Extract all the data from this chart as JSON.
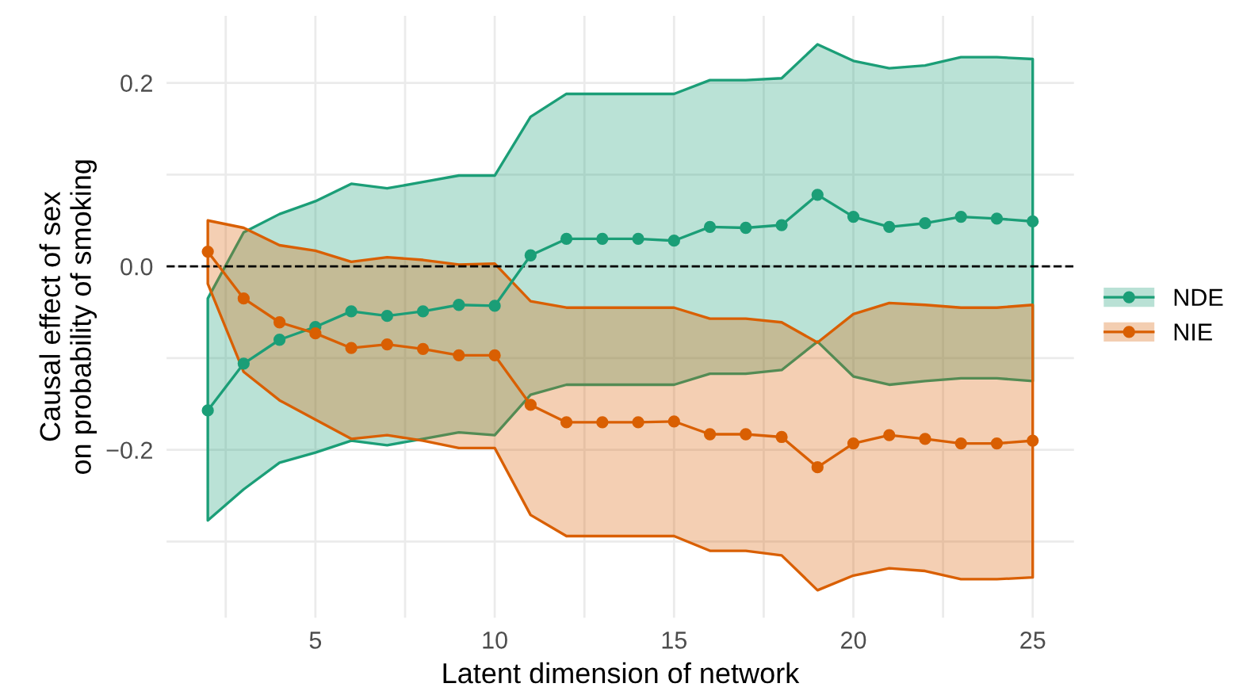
{
  "chart_data": {
    "type": "line",
    "xlabel": "Latent dimension of network",
    "ylabel": "Causal effect of sex\non probability of smoking",
    "x": [
      2,
      3,
      4,
      5,
      6,
      7,
      8,
      9,
      10,
      11,
      12,
      13,
      14,
      15,
      16,
      17,
      18,
      19,
      20,
      21,
      22,
      23,
      24,
      25
    ],
    "series": [
      {
        "name": "NDE",
        "color": "#1b9e77",
        "values": [
          -0.157,
          -0.106,
          -0.08,
          -0.066,
          -0.049,
          -0.054,
          -0.049,
          -0.042,
          -0.043,
          0.012,
          0.03,
          0.03,
          0.03,
          0.028,
          0.043,
          0.042,
          0.045,
          0.078,
          0.054,
          0.043,
          0.047,
          0.054,
          0.052,
          0.049
        ],
        "lower": [
          -0.277,
          -0.243,
          -0.214,
          -0.203,
          -0.19,
          -0.195,
          -0.188,
          -0.181,
          -0.184,
          -0.14,
          -0.129,
          -0.129,
          -0.129,
          -0.129,
          -0.117,
          -0.117,
          -0.113,
          -0.082,
          -0.12,
          -0.129,
          -0.125,
          -0.122,
          -0.122,
          -0.125
        ],
        "upper": [
          -0.035,
          0.037,
          0.057,
          0.071,
          0.09,
          0.085,
          0.092,
          0.099,
          0.099,
          0.163,
          0.188,
          0.188,
          0.188,
          0.188,
          0.203,
          0.203,
          0.205,
          0.242,
          0.224,
          0.216,
          0.219,
          0.228,
          0.228,
          0.226
        ]
      },
      {
        "name": "NIE",
        "color": "#d95f02",
        "values": [
          0.016,
          -0.035,
          -0.061,
          -0.073,
          -0.089,
          -0.085,
          -0.09,
          -0.097,
          -0.097,
          -0.151,
          -0.17,
          -0.17,
          -0.17,
          -0.169,
          -0.183,
          -0.183,
          -0.186,
          -0.219,
          -0.193,
          -0.184,
          -0.188,
          -0.193,
          -0.193,
          -0.19
        ],
        "lower": [
          -0.019,
          -0.115,
          -0.146,
          -0.167,
          -0.188,
          -0.184,
          -0.19,
          -0.198,
          -0.198,
          -0.271,
          -0.294,
          -0.294,
          -0.294,
          -0.294,
          -0.31,
          -0.31,
          -0.315,
          -0.353,
          -0.337,
          -0.329,
          -0.332,
          -0.341,
          -0.341,
          -0.339
        ],
        "upper": [
          0.05,
          0.042,
          0.023,
          0.017,
          0.005,
          0.01,
          0.007,
          0.002,
          0.003,
          -0.038,
          -0.045,
          -0.045,
          -0.045,
          -0.045,
          -0.057,
          -0.057,
          -0.061,
          -0.083,
          -0.052,
          -0.04,
          -0.042,
          -0.045,
          -0.045,
          -0.042
        ]
      }
    ],
    "xlim": [
      0.85,
      26.15
    ],
    "ylim": [
      -0.383,
      0.273
    ],
    "xticks": [
      {
        "value": 2.5,
        "label": null
      },
      5,
      {
        "value": 7.5,
        "label": null
      },
      10,
      {
        "value": 12.5,
        "label": null
      },
      15,
      {
        "value": 17.5,
        "label": null
      },
      20,
      {
        "value": 22.5,
        "label": null
      },
      25
    ],
    "yticks": [
      {
        "value": -0.3,
        "label": null
      },
      {
        "value": -0.2,
        "label": "−0.2"
      },
      {
        "value": -0.1,
        "label": null
      },
      {
        "value": 0.0,
        "label": "0.0"
      },
      {
        "value": 0.1,
        "label": null
      },
      {
        "value": 0.2,
        "label": "0.2"
      }
    ],
    "ref_lines": [
      {
        "axis": "y",
        "value": 0,
        "color": "#000000",
        "line_style": "dashed"
      }
    ],
    "grid": true,
    "legend": "right",
    "marker": "circle",
    "line_style": "solid"
  }
}
